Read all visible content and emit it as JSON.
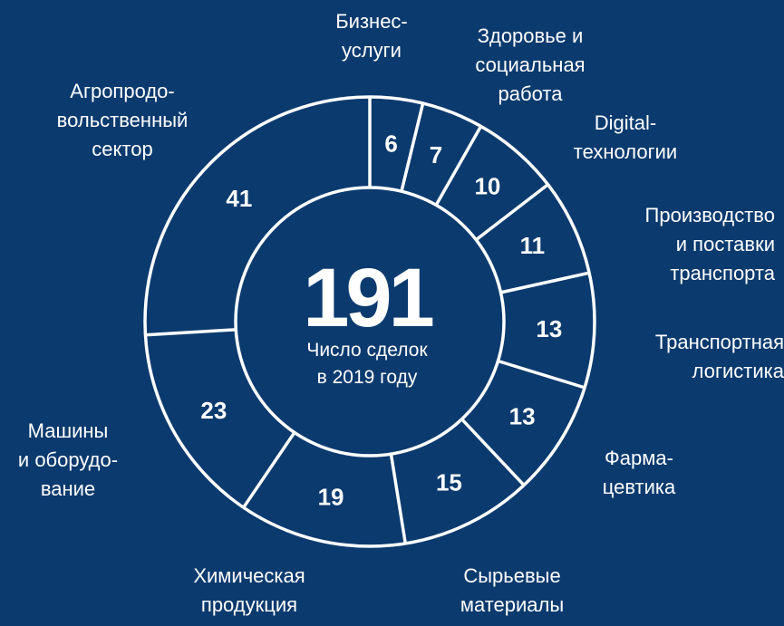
{
  "chart_data": {
    "type": "pie",
    "donut": true,
    "center_value": "191",
    "center_label": "Число сделок\nв 2019 году",
    "categories": [
      "Бизнес-\nуслуги",
      "Здоровье и\nсоциальная\nработа",
      "Digital-\nтехнологии",
      "Производство\nи поставки\nтранспорта",
      "Транспортная\nлогистика",
      "Фарма-\nцевтика",
      "Сырьевые\nматериалы",
      "Химическая\nпродукция",
      "Машины\nи оборудо-\nвание",
      "Агропродо-\nвольственный\nсектор"
    ],
    "values": [
      6,
      7,
      10,
      11,
      13,
      13,
      15,
      19,
      23,
      41
    ],
    "data_labels": [
      "6",
      "7",
      "10",
      "11",
      "13",
      "13",
      "15",
      "19",
      "23",
      "41"
    ],
    "start": "top",
    "direction": "clockwise",
    "colors": {
      "background": "#0b3a6e",
      "stroke": "#ffffff",
      "text": "#ffffff"
    }
  }
}
